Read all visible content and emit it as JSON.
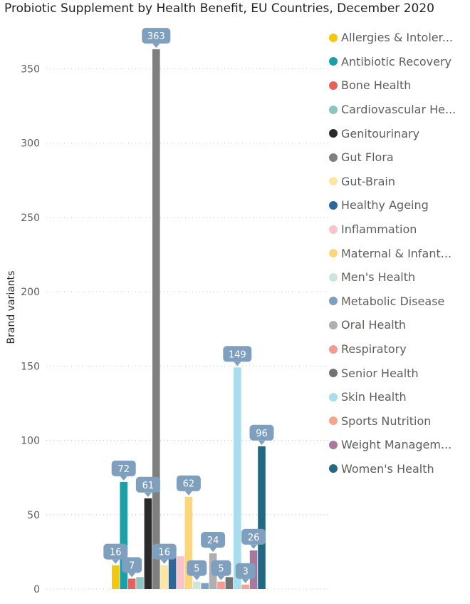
{
  "chart_data": {
    "type": "bar",
    "title": "Probiotic Supplement by Health Benefit, EU Countries, December 2020",
    "xlabel": "",
    "ylabel": "Brand variants",
    "ylim": [
      0,
      370
    ],
    "yticks": [
      0,
      50,
      100,
      150,
      200,
      250,
      300,
      350
    ],
    "grid": true,
    "legend_position": "right",
    "series": [
      {
        "name": "Allergies & Intolerances",
        "value": 16,
        "label": "16",
        "color": "#F2C80F"
      },
      {
        "name": "Antibiotic Recovery",
        "value": 72,
        "label": "72",
        "color": "#1AA0A6"
      },
      {
        "name": "Bone Health",
        "value": 7,
        "label": "7",
        "color": "#E8605D"
      },
      {
        "name": "Cardiovascular Health",
        "value": 8,
        "label": "",
        "color": "#8AC5C3"
      },
      {
        "name": "Genitourinary",
        "value": 61,
        "label": "61",
        "color": "#2A2A2A"
      },
      {
        "name": "Gut Flora",
        "value": 363,
        "label": "363",
        "color": "#7F7F7F"
      },
      {
        "name": "Gut-Brain",
        "value": 16,
        "label": "16",
        "color": "#FBE7A2"
      },
      {
        "name": "Healthy Ageing",
        "value": 22,
        "label": "",
        "color": "#2F6699"
      },
      {
        "name": "Inflammation",
        "value": 22,
        "label": "",
        "color": "#F8C4C9"
      },
      {
        "name": "Maternal & Infant Health",
        "value": 62,
        "label": "62",
        "color": "#F9D77A"
      },
      {
        "name": "Men's Health",
        "value": 5,
        "label": "5",
        "color": "#CDE6D8"
      },
      {
        "name": "Metabolic Disease",
        "value": 4,
        "label": "",
        "color": "#7F9FBF"
      },
      {
        "name": "Oral Health",
        "value": 24,
        "label": "24",
        "color": "#AFAFAF"
      },
      {
        "name": "Respiratory",
        "value": 5,
        "label": "5",
        "color": "#F39A92"
      },
      {
        "name": "Senior Health",
        "value": 8,
        "label": "",
        "color": "#737373"
      },
      {
        "name": "Skin Health",
        "value": 149,
        "label": "149",
        "color": "#A7DDEC"
      },
      {
        "name": "Sports Nutrition",
        "value": 3,
        "label": "3",
        "color": "#F3A68B"
      },
      {
        "name": "Weight Management",
        "value": 26,
        "label": "26",
        "color": "#A8789E"
      },
      {
        "name": "Women's Health",
        "value": 96,
        "label": "96",
        "color": "#226882"
      }
    ]
  },
  "legend": {
    "items": [
      "Allergies & Intoler...",
      "Antibiotic Recovery",
      "Bone Health",
      "Cardiovascular He...",
      "Genitourinary",
      "Gut Flora",
      "Gut-Brain",
      "Healthy Ageing",
      "Inflammation",
      "Maternal & Infant...",
      "Men's Health",
      "Metabolic Disease",
      "Oral Health",
      "Respiratory",
      "Senior Health",
      "Skin Health",
      "Sports Nutrition",
      "Weight Managem...",
      "Women's Health"
    ]
  },
  "colors": {
    "grid": "#C8C6C4",
    "axis_text": "#605e5c",
    "callout": "#7F9FBF"
  }
}
